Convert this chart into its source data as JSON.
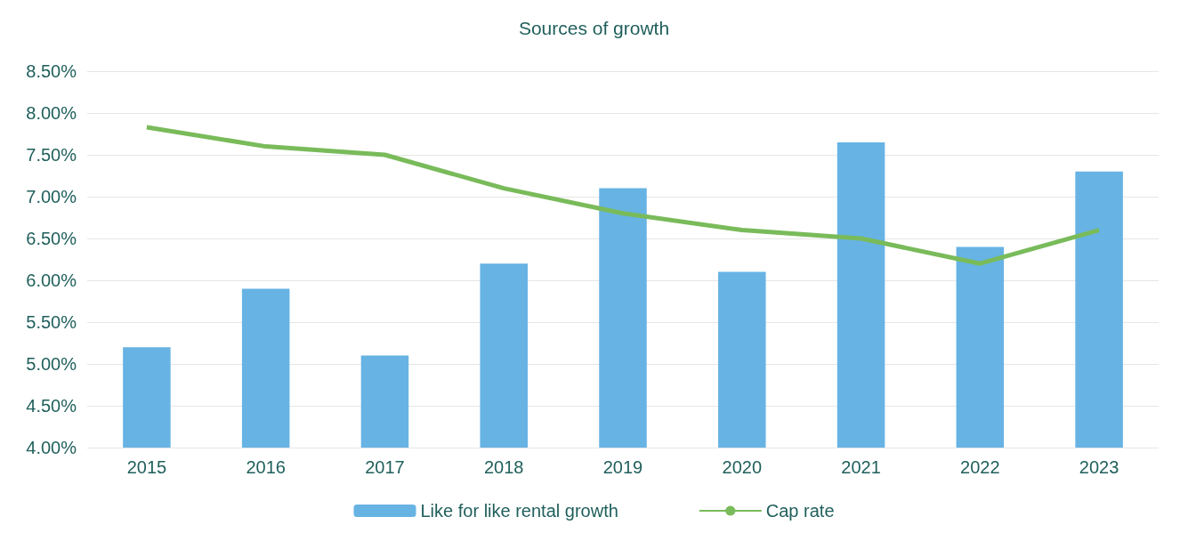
{
  "chart_data": {
    "type": "bar",
    "title": "Sources of growth",
    "categories": [
      "2015",
      "2016",
      "2017",
      "2018",
      "2019",
      "2020",
      "2021",
      "2022",
      "2023"
    ],
    "series": [
      {
        "name": "Like for like rental growth",
        "color": "#67b3e4",
        "values": [
          5.2,
          5.9,
          5.1,
          6.2,
          7.1,
          6.1,
          7.65,
          6.4,
          7.3
        ]
      },
      {
        "name": "Cap rate",
        "type": "line",
        "color": "#79bb5a",
        "values": [
          7.83,
          7.6,
          7.5,
          7.1,
          6.8,
          6.6,
          6.5,
          6.2,
          6.6
        ]
      }
    ],
    "ylim": [
      4,
      8.5
    ],
    "yticks": [
      {
        "value": 4,
        "label": "4.00%"
      },
      {
        "value": 4.5,
        "label": "4.50%"
      },
      {
        "value": 5,
        "label": "5.00%"
      },
      {
        "value": 5.5,
        "label": "5.50%"
      },
      {
        "value": 6,
        "label": "6.00%"
      },
      {
        "value": 6.5,
        "label": "6.50%"
      },
      {
        "value": 7,
        "label": "7.00%"
      },
      {
        "value": 7.5,
        "label": "7.50%"
      },
      {
        "value": 8,
        "label": "8.00%"
      },
      {
        "value": 8.5,
        "label": "8.50%"
      }
    ],
    "grid": "y",
    "legend": "bottom",
    "marker": "none"
  }
}
